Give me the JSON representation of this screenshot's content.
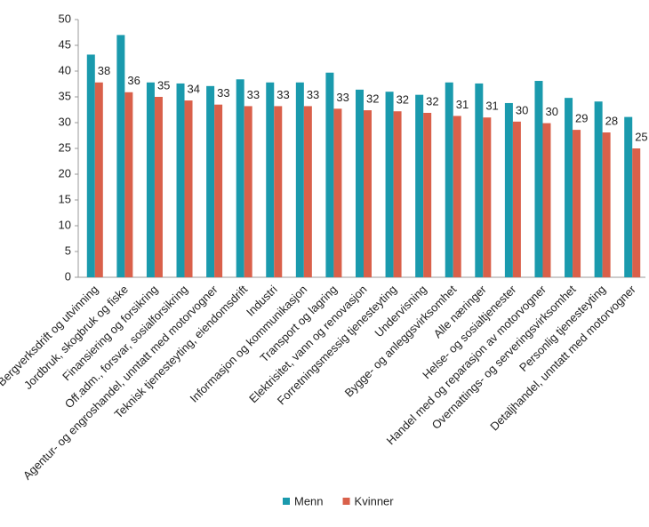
{
  "chart_data": {
    "type": "bar",
    "categories": [
      "Bergverksdrift og utvinning",
      "Jordbruk, skogbruk og fiske",
      "Finansiering og forsikring",
      "Off.adm., forsvar, sosialforsikring",
      "Agentur- og engroshandel, unntatt med motorvogner",
      "Teknisk tjenesteyting, eiendomsdrift",
      "Industri",
      "Informasjon og kommunikasjon",
      "Transport og lagring",
      "Elektrisitet, vann og renovasjon",
      "Forretningsmessig tjenesteyting",
      "Undervisning",
      "Bygge- og anleggsvirksomhet",
      "Alle næringer",
      "Helse- og sosialtjenester",
      "Handel med og reparasjon av motorvogner",
      "Overnattings- og serveringsvirksomhet",
      "Personlig tjenesteyting",
      "Detaljhandel, unntatt med motorvogner"
    ],
    "series": [
      {
        "name": "Menn",
        "color": "#1a9aad",
        "values": [
          43.2,
          47.0,
          37.8,
          37.6,
          37.1,
          38.4,
          37.8,
          37.8,
          39.7,
          36.4,
          36.0,
          35.4,
          37.8,
          37.6,
          33.8,
          38.1,
          34.8,
          34.1,
          31.1
        ]
      },
      {
        "name": "Kvinner",
        "color": "#d9604a",
        "values": [
          37.8,
          35.9,
          35.0,
          34.3,
          33.5,
          33.2,
          33.2,
          33.2,
          32.7,
          32.4,
          32.2,
          31.9,
          31.3,
          31.0,
          30.2,
          29.9,
          28.6,
          28.1,
          25.0
        ],
        "value_labels": [
          "38",
          "36",
          "35",
          "34",
          "33",
          "33",
          "33",
          "33",
          "33",
          "32",
          "32",
          "32",
          "31",
          "31",
          "30",
          "30",
          "29",
          "28",
          "25"
        ]
      }
    ],
    "ylim": [
      0,
      50
    ],
    "yticks": [
      0,
      5,
      10,
      15,
      20,
      25,
      30,
      35,
      40,
      45,
      50
    ],
    "grid": false,
    "legend": "bottom"
  }
}
